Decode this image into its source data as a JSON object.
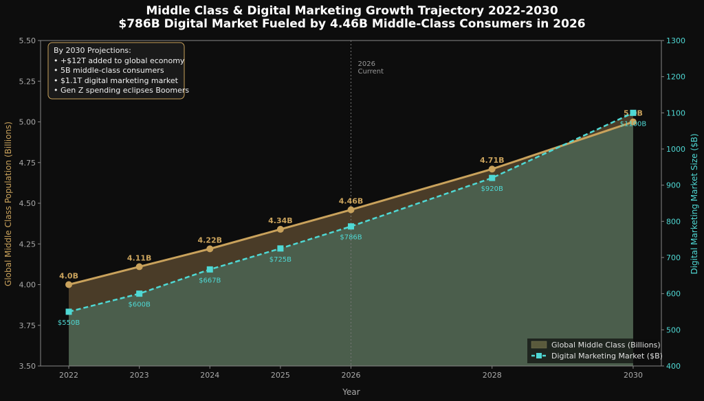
{
  "chart_data": {
    "type": "line",
    "title": "Middle Class & Digital Marketing Growth Trajectory 2022-2030",
    "subtitle": "$786B Digital Market Fueled by 4.46B Middle-Class Consumers in 2026",
    "xlabel": "Year",
    "ylabel_left": "Global Middle Class Population (Billions)",
    "ylabel_right": "Digital Marketing Market Size ($B)",
    "x": [
      2022,
      2023,
      2024,
      2025,
      2026,
      2028,
      2030
    ],
    "xlim": [
      2021.6,
      2030.4
    ],
    "ylim_left": [
      3.5,
      5.5
    ],
    "ylim_right": [
      400,
      1300
    ],
    "yticks_left": [
      "3.50",
      "3.75",
      "4.00",
      "4.25",
      "4.50",
      "4.75",
      "5.00",
      "5.25",
      "5.50"
    ],
    "yticks_right": [
      "400",
      "500",
      "600",
      "700",
      "800",
      "900",
      "1000",
      "1100",
      "1200",
      "1300"
    ],
    "grid": false,
    "legend_position": "bottom-right",
    "series": [
      {
        "name": "Global Middle Class (Billions)",
        "axis": "left",
        "values": [
          4.0,
          4.11,
          4.22,
          4.34,
          4.46,
          4.71,
          5.0
        ],
        "labels": [
          "4.0B",
          "4.11B",
          "4.22B",
          "4.34B",
          "4.46B",
          "4.71B",
          "5.0B"
        ],
        "color": "#c9a25c"
      },
      {
        "name": "Digital Marketing Market ($B)",
        "axis": "right",
        "values": [
          550,
          600,
          667,
          725,
          786,
          920,
          1100
        ],
        "labels": [
          "$550B",
          "$600B",
          "$667B",
          "$725B",
          "$786B",
          "$920B",
          "$1100B"
        ],
        "color": "#4fd8d4"
      }
    ],
    "vline": {
      "x": 2026,
      "label_line1": "2026",
      "label_line2": "Current"
    },
    "annotation_box": {
      "title": "By 2030 Projections:",
      "items": [
        "• +$12T added to global economy",
        "• 5B middle-class consumers",
        "• $1.1T digital marketing market",
        "• Gen Z spending eclipses Boomers"
      ]
    },
    "colors": {
      "background": "#0d0d0d",
      "axis": "#888888",
      "tick_text": "#aaaaaa",
      "fill_between": "#4a3c28",
      "fill_under": "#4b5e4c"
    }
  }
}
